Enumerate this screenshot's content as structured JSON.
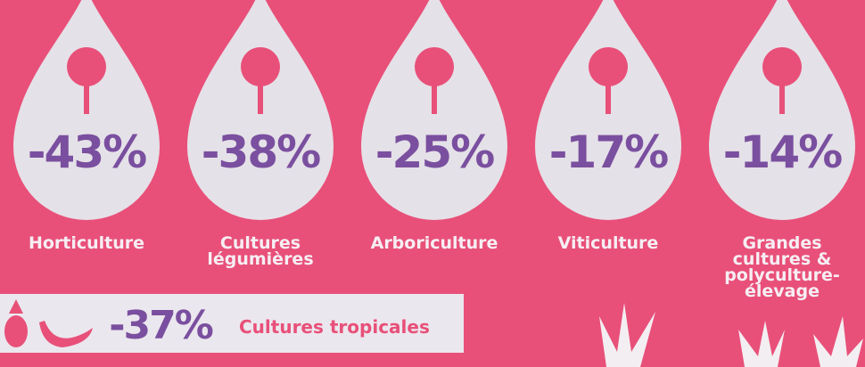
{
  "items": [
    {
      "value": "-43%",
      "label": [
        "Horticulture"
      ]
    },
    {
      "value": "-38%",
      "label": [
        "Cultures",
        "légumières"
      ]
    },
    {
      "value": "-25%",
      "label": [
        "Arboriculture"
      ]
    },
    {
      "value": "-17%",
      "label": [
        "Viticulture"
      ]
    },
    {
      "value": "-14%",
      "label": [
        "Grandes",
        "cultures &",
        "polyculture-",
        "élevage"
      ]
    }
  ],
  "tropical": {
    "value": "-37%",
    "label": "Cultures tropicales"
  }
}
